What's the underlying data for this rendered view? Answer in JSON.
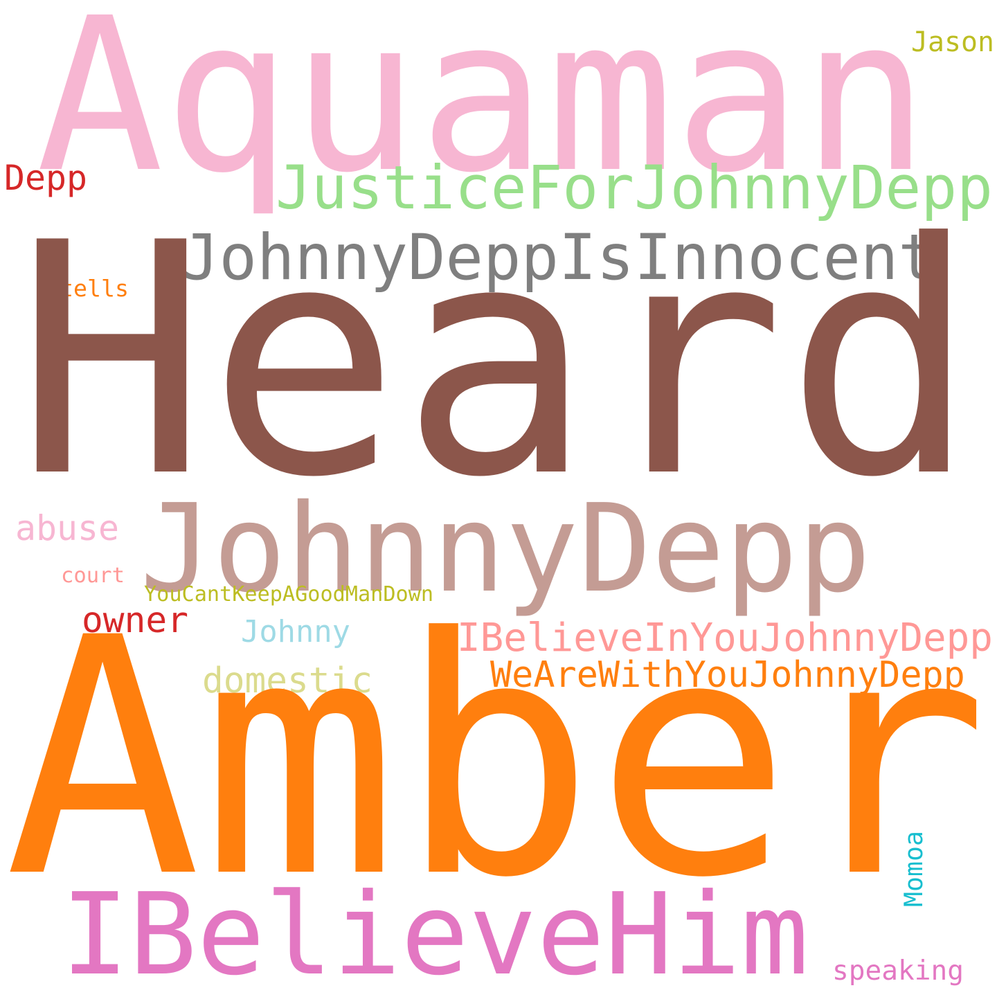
{
  "words": [
    {
      "id": "aquaman",
      "text": "Aquaman",
      "color": "#f7b6d2"
    },
    {
      "id": "jason",
      "text": "Jason",
      "color": "#bcbd22"
    },
    {
      "id": "justiceforjohnnydepp",
      "text": "JusticeForJohnnyDepp",
      "color": "#98df8a"
    },
    {
      "id": "depp",
      "text": "Depp",
      "color": "#d62728"
    },
    {
      "id": "johnnydeppisinnocent",
      "text": "JohnnyDeppIsInnocent",
      "color": "#7f7f7f"
    },
    {
      "id": "tells",
      "text": "tells",
      "color": "#ff7f0e"
    },
    {
      "id": "heard",
      "text": "Heard",
      "color": "#8c564b"
    },
    {
      "id": "johnnydepp",
      "text": "JohnnyDepp",
      "color": "#c49c94"
    },
    {
      "id": "abuse",
      "text": "abuse",
      "color": "#f7b6d2"
    },
    {
      "id": "court",
      "text": "court",
      "color": "#ff9896"
    },
    {
      "id": "youcantkeepagoodmandown",
      "text": "YouCantKeepAGoodManDown",
      "color": "#bcbd22"
    },
    {
      "id": "owner",
      "text": "owner",
      "color": "#d62728"
    },
    {
      "id": "johnny",
      "text": "Johnny",
      "color": "#9edae5"
    },
    {
      "id": "ibelieveinyoujohnnydepp",
      "text": "IBelieveInYouJohnnyDepp",
      "color": "#ff9896"
    },
    {
      "id": "domestic",
      "text": "domestic",
      "color": "#dbdb8d"
    },
    {
      "id": "wearewithyoujohnnydepp",
      "text": "WeAreWithYouJohnnyDepp",
      "color": "#ff7f0e"
    },
    {
      "id": "amber",
      "text": "Amber",
      "color": "#ff7f0e"
    },
    {
      "id": "momoa",
      "text": "Momoa",
      "color": "#17becf"
    },
    {
      "id": "ibelievehim",
      "text": "IBelieveHim",
      "color": "#e377c2"
    },
    {
      "id": "speaking",
      "text": "speaking",
      "color": "#e377c2"
    }
  ]
}
